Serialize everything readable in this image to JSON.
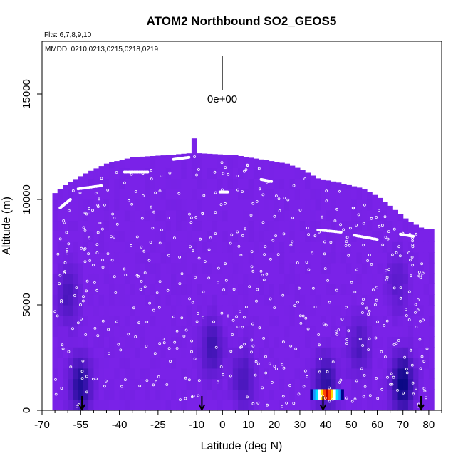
{
  "chart_data": {
    "type": "heatmap",
    "title": "ATOM2 Northbound SO2_GEOS5",
    "flights_label": "Flts: 6,7,8,9,10",
    "dates_label": "MMDD: 0210,0213,0215,0218,0219",
    "colorbar_label": "0e+00",
    "xlabel": "Latitude (deg N)",
    "ylabel": "Altitude (m)",
    "xlim": [
      -70,
      85
    ],
    "ylim": [
      0,
      17500
    ],
    "x_ticks": [
      -70,
      -55,
      -40,
      -25,
      -10,
      0,
      10,
      20,
      30,
      40,
      50,
      60,
      70,
      80
    ],
    "x_ticks_minor": [
      -65,
      -60,
      -50,
      -45,
      -35,
      -30,
      -20,
      -15,
      -5,
      5,
      15,
      25,
      35,
      45,
      55,
      65,
      75,
      85
    ],
    "y_ticks": [
      0,
      5000,
      10000,
      15000
    ],
    "background_color": "#7a22e8",
    "arrow_latitudes": [
      -54.5,
      -8,
      39,
      77
    ],
    "domain_top": [
      [
        -66,
        9200
      ],
      [
        -65,
        10300
      ],
      [
        -62,
        10600
      ],
      [
        -58,
        10900
      ],
      [
        -52,
        11300
      ],
      [
        -45,
        11700
      ],
      [
        -35,
        12000
      ],
      [
        -22,
        12100
      ],
      [
        -12,
        12200
      ],
      [
        -11,
        12900
      ],
      [
        -10,
        12200
      ],
      [
        5,
        12100
      ],
      [
        15,
        11900
      ],
      [
        25,
        11700
      ],
      [
        31,
        11400
      ],
      [
        37,
        11000
      ],
      [
        45,
        10800
      ],
      [
        55,
        10500
      ],
      [
        62,
        10000
      ],
      [
        68,
        9400
      ],
      [
        72,
        9000
      ],
      [
        75,
        8800
      ],
      [
        78,
        8600
      ],
      [
        80,
        8600
      ]
    ],
    "anomalies": [
      {
        "lat": -55,
        "alt": 1200,
        "strength": 0.8
      },
      {
        "lat": -60,
        "alt": 5500,
        "strength": 0.45
      },
      {
        "lat": -4,
        "alt": 3000,
        "strength": 0.55
      },
      {
        "lat": 8,
        "alt": 1500,
        "strength": 0.45
      },
      {
        "lat": 40,
        "alt": 1300,
        "strength": 0.7
      },
      {
        "lat": 53,
        "alt": 3000,
        "strength": 0.4
      },
      {
        "lat": 70,
        "alt": 1300,
        "strength": 1.0
      },
      {
        "lat": 68,
        "alt": 6000,
        "strength": 0.3
      }
    ],
    "hot_spot": {
      "lat_range": [
        34,
        47
      ],
      "alt_range": [
        500,
        1000
      ]
    }
  }
}
